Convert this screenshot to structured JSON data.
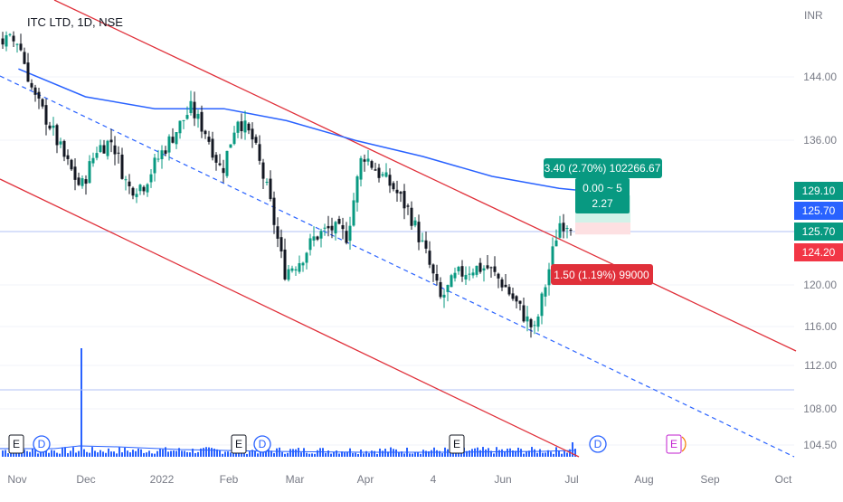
{
  "header": {
    "symbol_title": "ITC LTD, 1D, NSE",
    "currency": "INR"
  },
  "price_scale": {
    "ticks": [
      "144.00",
      "136.00",
      "129.10",
      "125.70",
      "125.70",
      "124.20",
      "120.00",
      "116.00",
      "112.00",
      "108.00",
      "104.50"
    ],
    "badges": [
      {
        "label": "129.10",
        "color": "#089981",
        "price": 129.1
      },
      {
        "label": "125.70",
        "color": "#2962ff",
        "price": 125.7
      },
      {
        "label": "125.70",
        "color": "#089981",
        "price": 125.7
      },
      {
        "label": "124.20",
        "color": "#f23645",
        "price": 124.2
      }
    ]
  },
  "time_axis": {
    "labels": [
      "Nov",
      "Dec",
      "2022",
      "Feb",
      "Mar",
      "Apr",
      "4",
      "Jun",
      "Jul",
      "Aug",
      "Sep",
      "Oct"
    ]
  },
  "position_tool": {
    "target_label": "3.40 (2.70%) 102266.67",
    "stats_line1": "0.00 ~ 5",
    "stats_line2": "2.27",
    "stop_label": "1.50 (1.19%) 99000",
    "entry_price": 125.7,
    "target_price": 129.1,
    "stop_price": 124.2
  },
  "events": {
    "markers": [
      {
        "type": "earnings",
        "glyph": "E"
      },
      {
        "type": "dividend",
        "glyph": "D"
      },
      {
        "type": "earnings",
        "glyph": "E"
      },
      {
        "type": "dividend",
        "glyph": "D"
      },
      {
        "type": "earnings",
        "glyph": "E"
      },
      {
        "type": "dividend",
        "glyph": "D"
      },
      {
        "type": "dividend",
        "glyph": "D"
      },
      {
        "type": "earnings-upcoming",
        "glyph": "E"
      }
    ]
  },
  "colors": {
    "up": "#089981",
    "down": "#131722",
    "volume": "#2962ff",
    "moving_average": "#2962ff",
    "channel": "#e0303a",
    "midline": "#2962ff",
    "horizontal_line": "#b2c0f5"
  },
  "chart_data": {
    "type": "candlestick",
    "title": "ITC LTD, 1D, NSE",
    "currency": "INR",
    "ylim": [
      103.5,
      151
    ],
    "x_range": [
      "2021-11",
      "2022-10"
    ],
    "overlays": [
      "200-day moving average",
      "descending regression channel",
      "long position tool"
    ],
    "close_path": [
      {
        "date": "2021-11-01",
        "close": 148.5
      },
      {
        "date": "2021-11-08",
        "close": 141.5
      },
      {
        "date": "2021-11-15",
        "close": 138
      },
      {
        "date": "2021-11-22",
        "close": 133.5
      },
      {
        "date": "2021-11-29",
        "close": 130
      },
      {
        "date": "2021-12-06",
        "close": 135
      },
      {
        "date": "2021-12-13",
        "close": 136
      },
      {
        "date": "2021-12-20",
        "close": 130
      },
      {
        "date": "2021-12-27",
        "close": 130.5
      },
      {
        "date": "2022-01-03",
        "close": 134
      },
      {
        "date": "2022-01-10",
        "close": 137
      },
      {
        "date": "2022-01-17",
        "close": 140
      },
      {
        "date": "2022-01-24",
        "close": 137
      },
      {
        "date": "2022-01-31",
        "close": 132
      },
      {
        "date": "2022-02-07",
        "close": 139
      },
      {
        "date": "2022-02-14",
        "close": 136
      },
      {
        "date": "2022-02-21",
        "close": 129
      },
      {
        "date": "2022-02-28",
        "close": 119.5
      },
      {
        "date": "2022-03-07",
        "close": 121
      },
      {
        "date": "2022-03-14",
        "close": 124
      },
      {
        "date": "2022-03-21",
        "close": 125
      },
      {
        "date": "2022-03-28",
        "close": 124
      },
      {
        "date": "2022-04-04",
        "close": 134.5
      },
      {
        "date": "2022-04-11",
        "close": 132
      },
      {
        "date": "2022-04-18",
        "close": 130
      },
      {
        "date": "2022-04-25",
        "close": 127
      },
      {
        "date": "2022-05-02",
        "close": 122
      },
      {
        "date": "2022-05-09",
        "close": 116
      },
      {
        "date": "2022-05-16",
        "close": 119
      },
      {
        "date": "2022-05-23",
        "close": 120
      },
      {
        "date": "2022-05-30",
        "close": 120
      },
      {
        "date": "2022-06-06",
        "close": 118
      },
      {
        "date": "2022-06-13",
        "close": 115
      },
      {
        "date": "2022-06-20",
        "close": 112
      },
      {
        "date": "2022-06-27",
        "close": 120.5
      },
      {
        "date": "2022-07-01",
        "close": 125.7
      }
    ],
    "moving_average": [
      {
        "date": "2021-11-01",
        "value": 145
      },
      {
        "date": "2021-12-01",
        "value": 141.5
      },
      {
        "date": "2022-01-01",
        "value": 140
      },
      {
        "date": "2022-02-01",
        "value": 140
      },
      {
        "date": "2022-03-01",
        "value": 138.5
      },
      {
        "date": "2022-04-01",
        "value": 136
      },
      {
        "date": "2022-05-01",
        "value": 134
      },
      {
        "date": "2022-06-01",
        "value": 131.5
      },
      {
        "date": "2022-07-01",
        "value": 130
      }
    ]
  }
}
